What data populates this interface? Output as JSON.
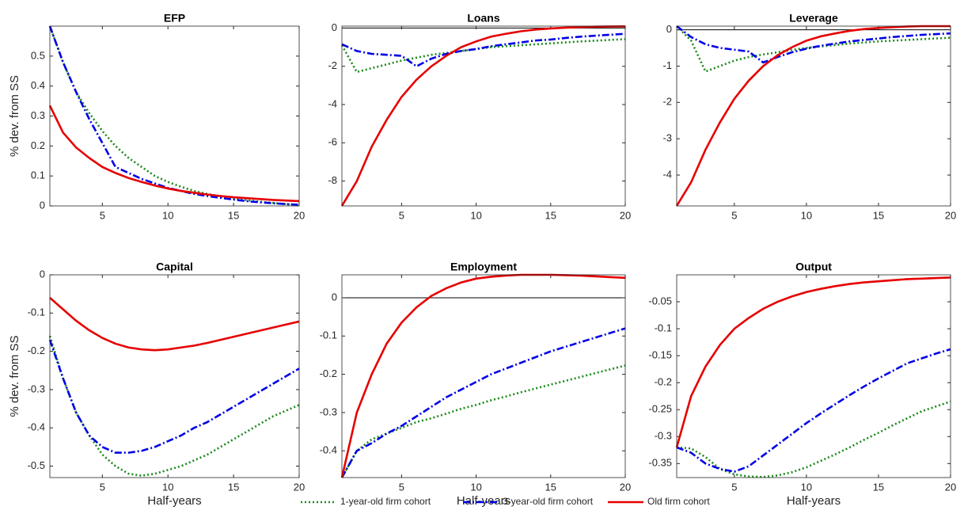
{
  "chart_data": [
    {
      "type": "line",
      "title": "EFP",
      "ylabel": "% dev. from SS",
      "x": [
        1,
        2,
        3,
        4,
        5,
        6,
        7,
        8,
        9,
        10,
        11,
        12,
        13,
        14,
        15,
        16,
        17,
        18,
        19,
        20
      ],
      "xlim": [
        1,
        20
      ],
      "xticks": [
        5,
        10,
        15,
        20
      ],
      "ylim": [
        0,
        0.6
      ],
      "yticks": [
        0,
        0.1,
        0.2,
        0.3,
        0.4,
        0.5
      ],
      "zero_line": false,
      "series": [
        {
          "values": [
            0.6,
            0.48,
            0.38,
            0.31,
            0.25,
            0.2,
            0.16,
            0.13,
            0.1,
            0.08,
            0.064,
            0.05,
            0.04,
            0.032,
            0.025,
            0.019,
            0.014,
            0.01,
            0.006,
            0.003
          ]
        },
        {
          "values": [
            0.6,
            0.48,
            0.38,
            0.29,
            0.21,
            0.13,
            0.11,
            0.09,
            0.075,
            0.06,
            0.05,
            0.04,
            0.033,
            0.027,
            0.021,
            0.016,
            0.012,
            0.009,
            0.006,
            0.004
          ]
        },
        {
          "values": [
            0.335,
            0.245,
            0.195,
            0.16,
            0.13,
            0.11,
            0.093,
            0.08,
            0.068,
            0.058,
            0.05,
            0.044,
            0.038,
            0.033,
            0.029,
            0.026,
            0.023,
            0.02,
            0.018,
            0.016
          ]
        }
      ]
    },
    {
      "type": "line",
      "title": "Loans",
      "x": [
        1,
        2,
        3,
        4,
        5,
        6,
        7,
        8,
        9,
        10,
        11,
        12,
        13,
        14,
        15,
        16,
        17,
        18,
        19,
        20
      ],
      "xlim": [
        1,
        20
      ],
      "xticks": [
        5,
        10,
        15,
        20
      ],
      "ylim": [
        -9.3,
        0.1
      ],
      "yticks": [
        -8,
        -6,
        -4,
        -2,
        0
      ],
      "zero_line": true,
      "series": [
        {
          "values": [
            -0.9,
            -2.3,
            -2.1,
            -1.9,
            -1.7,
            -1.55,
            -1.4,
            -1.3,
            -1.2,
            -1.1,
            -1.0,
            -0.95,
            -0.9,
            -0.85,
            -0.8,
            -0.75,
            -0.7,
            -0.66,
            -0.62,
            -0.58
          ]
        },
        {
          "values": [
            -0.85,
            -1.2,
            -1.35,
            -1.4,
            -1.45,
            -2.0,
            -1.6,
            -1.35,
            -1.2,
            -1.1,
            -0.95,
            -0.85,
            -0.75,
            -0.65,
            -0.6,
            -0.52,
            -0.45,
            -0.4,
            -0.35,
            -0.3
          ]
        },
        {
          "values": [
            -9.3,
            -8.0,
            -6.2,
            -4.8,
            -3.6,
            -2.7,
            -2.0,
            -1.45,
            -1.0,
            -0.7,
            -0.45,
            -0.3,
            -0.17,
            -0.08,
            -0.02,
            0.02,
            0.05,
            0.07,
            0.08,
            0.09
          ]
        }
      ]
    },
    {
      "type": "line",
      "title": "Leverage",
      "x": [
        1,
        2,
        3,
        4,
        5,
        6,
        7,
        8,
        9,
        10,
        11,
        12,
        13,
        14,
        15,
        16,
        17,
        18,
        19,
        20
      ],
      "xlim": [
        1,
        20
      ],
      "xticks": [
        5,
        10,
        15,
        20
      ],
      "ylim": [
        -4.85,
        0.1
      ],
      "yticks": [
        -4,
        -3,
        -2,
        -1,
        0
      ],
      "zero_line": true,
      "series": [
        {
          "values": [
            0.1,
            -0.3,
            -1.15,
            -1.0,
            -0.85,
            -0.75,
            -0.68,
            -0.62,
            -0.55,
            -0.5,
            -0.46,
            -0.42,
            -0.38,
            -0.35,
            -0.32,
            -0.3,
            -0.28,
            -0.26,
            -0.24,
            -0.22
          ]
        },
        {
          "values": [
            0.1,
            -0.2,
            -0.4,
            -0.5,
            -0.55,
            -0.6,
            -0.9,
            -0.75,
            -0.62,
            -0.52,
            -0.44,
            -0.38,
            -0.32,
            -0.28,
            -0.24,
            -0.2,
            -0.17,
            -0.14,
            -0.12,
            -0.1
          ]
        },
        {
          "values": [
            -4.85,
            -4.2,
            -3.3,
            -2.55,
            -1.9,
            -1.4,
            -1.0,
            -0.7,
            -0.48,
            -0.3,
            -0.18,
            -0.1,
            -0.03,
            0.02,
            0.05,
            0.07,
            0.09,
            0.1,
            0.1,
            0.1
          ]
        }
      ]
    },
    {
      "type": "line",
      "title": "Capital",
      "ylabel": "% dev. from SS",
      "xlabel": "Half-years",
      "x": [
        1,
        2,
        3,
        4,
        5,
        6,
        7,
        8,
        9,
        10,
        11,
        12,
        13,
        14,
        15,
        16,
        17,
        18,
        19,
        20
      ],
      "xlim": [
        1,
        20
      ],
      "xticks": [
        5,
        10,
        15,
        20
      ],
      "ylim": [
        -0.53,
        0
      ],
      "yticks": [
        -0.5,
        -0.4,
        -0.3,
        -0.2,
        -0.1,
        0
      ],
      "zero_line": false,
      "series": [
        {
          "values": [
            -0.16,
            -0.27,
            -0.36,
            -0.42,
            -0.47,
            -0.5,
            -0.52,
            -0.525,
            -0.52,
            -0.51,
            -0.5,
            -0.485,
            -0.47,
            -0.45,
            -0.43,
            -0.41,
            -0.39,
            -0.37,
            -0.355,
            -0.34
          ]
        },
        {
          "values": [
            -0.17,
            -0.27,
            -0.36,
            -0.42,
            -0.45,
            -0.465,
            -0.465,
            -0.46,
            -0.45,
            -0.435,
            -0.42,
            -0.4,
            -0.385,
            -0.365,
            -0.345,
            -0.325,
            -0.305,
            -0.285,
            -0.265,
            -0.245
          ]
        },
        {
          "values": [
            -0.06,
            -0.09,
            -0.12,
            -0.145,
            -0.165,
            -0.18,
            -0.19,
            -0.195,
            -0.197,
            -0.195,
            -0.19,
            -0.185,
            -0.178,
            -0.17,
            -0.162,
            -0.154,
            -0.146,
            -0.138,
            -0.13,
            -0.122
          ]
        }
      ]
    },
    {
      "type": "line",
      "title": "Employment",
      "xlabel": "Half-years",
      "x": [
        1,
        2,
        3,
        4,
        5,
        6,
        7,
        8,
        9,
        10,
        11,
        12,
        13,
        14,
        15,
        16,
        17,
        18,
        19,
        20
      ],
      "xlim": [
        1,
        20
      ],
      "xticks": [
        5,
        10,
        15,
        20
      ],
      "ylim": [
        -0.47,
        0.06
      ],
      "yticks": [
        -0.4,
        -0.3,
        -0.2,
        -0.1,
        0
      ],
      "zero_line": true,
      "series": [
        {
          "values": [
            -0.47,
            -0.4,
            -0.37,
            -0.355,
            -0.34,
            -0.325,
            -0.315,
            -0.303,
            -0.29,
            -0.28,
            -0.268,
            -0.258,
            -0.247,
            -0.237,
            -0.227,
            -0.217,
            -0.207,
            -0.197,
            -0.187,
            -0.177
          ]
        },
        {
          "values": [
            -0.47,
            -0.4,
            -0.38,
            -0.355,
            -0.335,
            -0.31,
            -0.285,
            -0.26,
            -0.24,
            -0.22,
            -0.2,
            -0.185,
            -0.17,
            -0.155,
            -0.14,
            -0.128,
            -0.116,
            -0.104,
            -0.092,
            -0.08
          ]
        },
        {
          "values": [
            -0.47,
            -0.3,
            -0.2,
            -0.12,
            -0.065,
            -0.025,
            0.005,
            0.025,
            0.04,
            0.05,
            0.055,
            0.058,
            0.06,
            0.06,
            0.06,
            0.059,
            0.058,
            0.056,
            0.054,
            0.052
          ]
        }
      ]
    },
    {
      "type": "line",
      "title": "Output",
      "xlabel": "Half-years",
      "x": [
        1,
        2,
        3,
        4,
        5,
        6,
        7,
        8,
        9,
        10,
        11,
        12,
        13,
        14,
        15,
        16,
        17,
        18,
        19,
        20
      ],
      "xlim": [
        1,
        20
      ],
      "xticks": [
        5,
        10,
        15,
        20
      ],
      "ylim": [
        -0.376,
        0
      ],
      "yticks": [
        -0.35,
        -0.3,
        -0.25,
        -0.2,
        -0.15,
        -0.1,
        -0.05
      ],
      "zero_line": false,
      "series": [
        {
          "values": [
            -0.32,
            -0.322,
            -0.338,
            -0.36,
            -0.37,
            -0.374,
            -0.375,
            -0.372,
            -0.366,
            -0.357,
            -0.345,
            -0.333,
            -0.32,
            -0.306,
            -0.293,
            -0.279,
            -0.266,
            -0.253,
            -0.244,
            -0.235
          ]
        },
        {
          "values": [
            -0.32,
            -0.33,
            -0.35,
            -0.36,
            -0.365,
            -0.355,
            -0.335,
            -0.315,
            -0.295,
            -0.275,
            -0.257,
            -0.24,
            -0.223,
            -0.207,
            -0.192,
            -0.178,
            -0.164,
            -0.155,
            -0.146,
            -0.138
          ]
        },
        {
          "values": [
            -0.32,
            -0.225,
            -0.17,
            -0.13,
            -0.1,
            -0.08,
            -0.063,
            -0.05,
            -0.04,
            -0.032,
            -0.026,
            -0.021,
            -0.017,
            -0.014,
            -0.012,
            -0.01,
            -0.008,
            -0.007,
            -0.006,
            -0.005
          ]
        }
      ]
    }
  ],
  "legend": [
    {
      "name": "1-year-old firm cohort",
      "color": "#1a8a1a",
      "style": "dotted"
    },
    {
      "name": "3-year-old firm cohort",
      "color": "#0000e6",
      "style": "dashdot"
    },
    {
      "name": "Old firm cohort",
      "color": "#e60000",
      "style": "solid"
    }
  ]
}
